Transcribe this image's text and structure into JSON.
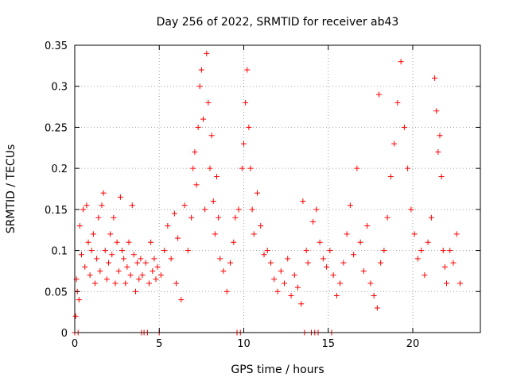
{
  "chart_data": {
    "type": "scatter",
    "title": "Day 256 of 2022, SRMTID for receiver ab43",
    "xlabel": "GPS time / hours",
    "ylabel": "SRMTID / TECUs",
    "xlim": [
      0,
      24
    ],
    "ylim": [
      0,
      0.35
    ],
    "grid": true,
    "marker": "+",
    "color": "#ff0000",
    "x_ticks": [
      0,
      5,
      10,
      15,
      20
    ],
    "x_tick_labels": [
      "0",
      "5",
      "10",
      "15",
      "20"
    ],
    "y_ticks": [
      0,
      0.05,
      0.1,
      0.15,
      0.2,
      0.25,
      0.3,
      0.35
    ],
    "y_tick_labels": [
      "0",
      "0.05",
      "0.1",
      "0.15",
      "0.2",
      "0.25",
      "0.3",
      "0.35"
    ],
    "series": [
      {
        "name": "SRMTID",
        "points": [
          [
            0.0,
            0.0
          ],
          [
            0.05,
            0.02
          ],
          [
            0.1,
            0.065
          ],
          [
            0.15,
            0.05
          ],
          [
            0.2,
            0.0
          ],
          [
            0.25,
            0.04
          ],
          [
            0.3,
            0.13
          ],
          [
            0.4,
            0.095
          ],
          [
            0.5,
            0.15
          ],
          [
            0.6,
            0.08
          ],
          [
            0.7,
            0.155
          ],
          [
            0.8,
            0.11
          ],
          [
            0.9,
            0.07
          ],
          [
            1.0,
            0.1
          ],
          [
            1.1,
            0.12
          ],
          [
            1.2,
            0.06
          ],
          [
            1.3,
            0.09
          ],
          [
            1.4,
            0.14
          ],
          [
            1.5,
            0.075
          ],
          [
            1.6,
            0.155
          ],
          [
            1.7,
            0.17
          ],
          [
            1.8,
            0.1
          ],
          [
            1.9,
            0.065
          ],
          [
            2.0,
            0.085
          ],
          [
            2.1,
            0.12
          ],
          [
            2.2,
            0.095
          ],
          [
            2.3,
            0.14
          ],
          [
            2.4,
            0.06
          ],
          [
            2.5,
            0.11
          ],
          [
            2.6,
            0.075
          ],
          [
            2.7,
            0.165
          ],
          [
            2.8,
            0.1
          ],
          [
            2.9,
            0.09
          ],
          [
            3.0,
            0.06
          ],
          [
            3.1,
            0.08
          ],
          [
            3.2,
            0.11
          ],
          [
            3.3,
            0.07
          ],
          [
            3.4,
            0.155
          ],
          [
            3.5,
            0.095
          ],
          [
            3.6,
            0.05
          ],
          [
            3.7,
            0.085
          ],
          [
            3.8,
            0.065
          ],
          [
            3.9,
            0.09
          ],
          [
            3.95,
            0.0
          ],
          [
            4.0,
            0.07
          ],
          [
            4.1,
            0.0
          ],
          [
            4.2,
            0.085
          ],
          [
            4.3,
            0.0
          ],
          [
            4.4,
            0.06
          ],
          [
            4.5,
            0.11
          ],
          [
            4.6,
            0.075
          ],
          [
            4.7,
            0.09
          ],
          [
            4.8,
            0.065
          ],
          [
            4.9,
            0.08
          ],
          [
            5.0,
            0.0
          ],
          [
            5.1,
            0.07
          ],
          [
            5.3,
            0.1
          ],
          [
            5.5,
            0.13
          ],
          [
            5.7,
            0.09
          ],
          [
            5.9,
            0.145
          ],
          [
            6.0,
            0.06
          ],
          [
            6.1,
            0.115
          ],
          [
            6.3,
            0.04
          ],
          [
            6.5,
            0.155
          ],
          [
            6.7,
            0.1
          ],
          [
            6.9,
            0.14
          ],
          [
            7.0,
            0.2
          ],
          [
            7.1,
            0.22
          ],
          [
            7.2,
            0.18
          ],
          [
            7.3,
            0.25
          ],
          [
            7.4,
            0.3
          ],
          [
            7.5,
            0.32
          ],
          [
            7.6,
            0.26
          ],
          [
            7.7,
            0.15
          ],
          [
            7.8,
            0.34
          ],
          [
            7.9,
            0.28
          ],
          [
            8.0,
            0.2
          ],
          [
            8.1,
            0.24
          ],
          [
            8.2,
            0.16
          ],
          [
            8.3,
            0.12
          ],
          [
            8.4,
            0.19
          ],
          [
            8.5,
            0.14
          ],
          [
            8.6,
            0.09
          ],
          [
            8.8,
            0.075
          ],
          [
            9.0,
            0.05
          ],
          [
            9.2,
            0.085
          ],
          [
            9.4,
            0.11
          ],
          [
            9.5,
            0.14
          ],
          [
            9.6,
            0.0
          ],
          [
            9.7,
            0.15
          ],
          [
            9.8,
            0.0
          ],
          [
            9.9,
            0.2
          ],
          [
            10.0,
            0.23
          ],
          [
            10.1,
            0.28
          ],
          [
            10.2,
            0.32
          ],
          [
            10.3,
            0.25
          ],
          [
            10.4,
            0.2
          ],
          [
            10.5,
            0.15
          ],
          [
            10.6,
            0.12
          ],
          [
            10.8,
            0.17
          ],
          [
            11.0,
            0.13
          ],
          [
            11.2,
            0.095
          ],
          [
            11.4,
            0.1
          ],
          [
            11.6,
            0.085
          ],
          [
            11.8,
            0.065
          ],
          [
            12.0,
            0.05
          ],
          [
            12.2,
            0.075
          ],
          [
            12.4,
            0.06
          ],
          [
            12.6,
            0.09
          ],
          [
            12.8,
            0.045
          ],
          [
            13.0,
            0.07
          ],
          [
            13.2,
            0.055
          ],
          [
            13.4,
            0.035
          ],
          [
            13.5,
            0.16
          ],
          [
            13.6,
            0.0
          ],
          [
            13.7,
            0.1
          ],
          [
            13.8,
            0.085
          ],
          [
            14.0,
            0.0
          ],
          [
            14.1,
            0.135
          ],
          [
            14.2,
            0.0
          ],
          [
            14.3,
            0.15
          ],
          [
            14.4,
            0.0
          ],
          [
            14.5,
            0.11
          ],
          [
            14.7,
            0.09
          ],
          [
            14.9,
            0.08
          ],
          [
            15.1,
            0.1
          ],
          [
            15.2,
            0.0
          ],
          [
            15.3,
            0.07
          ],
          [
            15.5,
            0.045
          ],
          [
            15.7,
            0.06
          ],
          [
            15.9,
            0.085
          ],
          [
            16.1,
            0.12
          ],
          [
            16.3,
            0.155
          ],
          [
            16.5,
            0.095
          ],
          [
            16.7,
            0.2
          ],
          [
            16.9,
            0.11
          ],
          [
            17.1,
            0.075
          ],
          [
            17.3,
            0.13
          ],
          [
            17.5,
            0.06
          ],
          [
            17.7,
            0.045
          ],
          [
            17.9,
            0.03
          ],
          [
            18.0,
            0.29
          ],
          [
            18.1,
            0.085
          ],
          [
            18.3,
            0.1
          ],
          [
            18.5,
            0.14
          ],
          [
            18.7,
            0.19
          ],
          [
            18.9,
            0.23
          ],
          [
            19.1,
            0.28
          ],
          [
            19.3,
            0.33
          ],
          [
            19.5,
            0.25
          ],
          [
            19.7,
            0.2
          ],
          [
            19.9,
            0.15
          ],
          [
            20.1,
            0.12
          ],
          [
            20.3,
            0.09
          ],
          [
            20.5,
            0.1
          ],
          [
            20.7,
            0.07
          ],
          [
            20.9,
            0.11
          ],
          [
            21.1,
            0.14
          ],
          [
            21.3,
            0.31
          ],
          [
            21.4,
            0.27
          ],
          [
            21.5,
            0.22
          ],
          [
            21.6,
            0.24
          ],
          [
            21.7,
            0.19
          ],
          [
            21.8,
            0.1
          ],
          [
            21.9,
            0.08
          ],
          [
            22.0,
            0.06
          ],
          [
            22.2,
            0.1
          ],
          [
            22.4,
            0.085
          ],
          [
            22.6,
            0.12
          ],
          [
            22.8,
            0.06
          ]
        ]
      }
    ]
  }
}
